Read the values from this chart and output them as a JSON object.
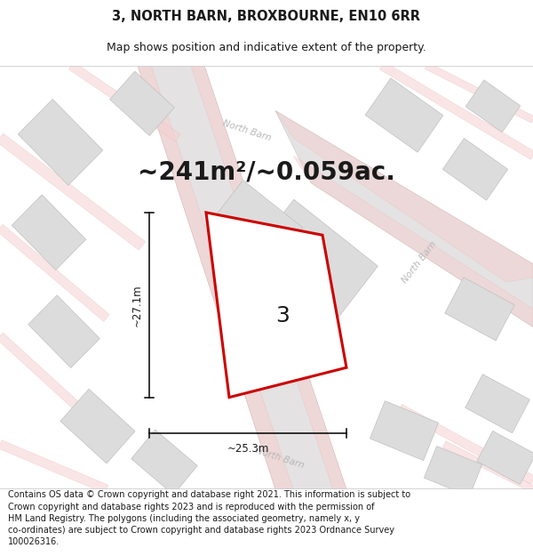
{
  "title": "3, NORTH BARN, BROXBOURNE, EN10 6RR",
  "subtitle": "Map shows position and indicative extent of the property.",
  "area_text": "~241m²/~0.059ac.",
  "dim_width": "~25.3m",
  "dim_height": "~27.1m",
  "property_label": "3",
  "footer": "Contains OS data © Crown copyright and database right 2021. This information is subject to Crown copyright and database rights 2023 and is reproduced with the permission of HM Land Registry. The polygons (including the associated geometry, namely x, y co-ordinates) are subject to Crown copyright and database rights 2023 Ordnance Survey 100026316.",
  "map_bg": "#f2f0f0",
  "red_outline": "#cc0000",
  "dark_text": "#1a1a1a",
  "gray_text": "#b0b0b0",
  "title_fontsize": 10.5,
  "subtitle_fontsize": 9,
  "area_fontsize": 20,
  "dim_fontsize": 8.5,
  "label_fontsize": 18,
  "footer_fontsize": 7.0,
  "road_label_color": "#b8b8b8",
  "building_face": "#dcdcdc",
  "building_edge": "#c0c0c0",
  "pink_road_face": "#f5d0d0",
  "pink_road_edge": "#e8b0b0",
  "gray_road_face": "#e4e2e2",
  "gray_road_edge": "#d0cece"
}
